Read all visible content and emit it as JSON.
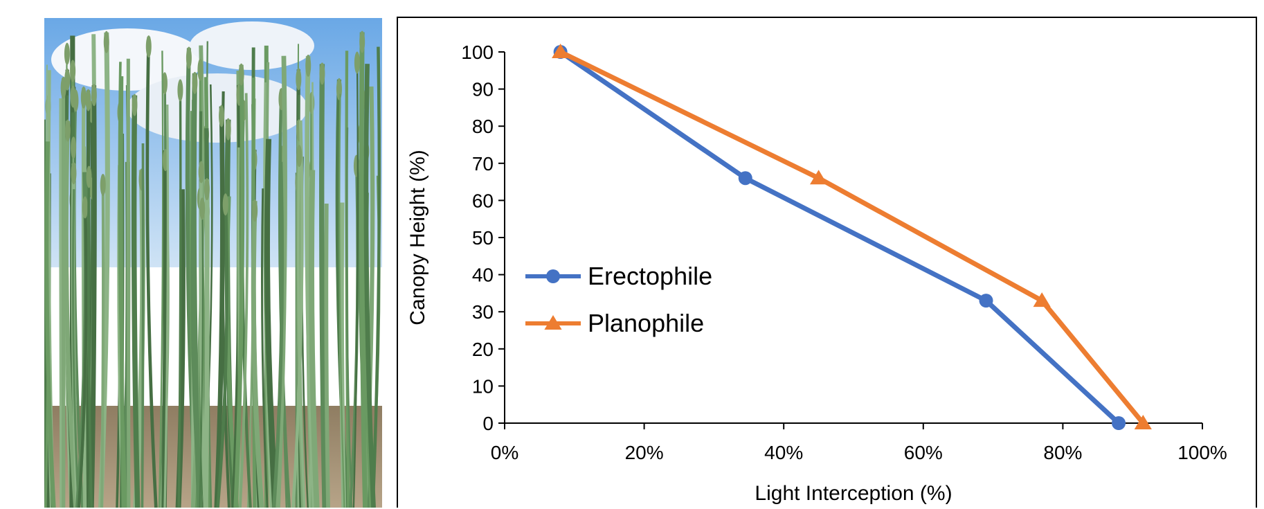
{
  "chart_data": {
    "type": "line",
    "title": "",
    "xlabel": "Light Interception (%)",
    "ylabel": "Canopy Height (%)",
    "xlim": [
      0,
      100
    ],
    "ylim": [
      0,
      100
    ],
    "x_ticks": [
      0,
      20,
      40,
      60,
      80,
      100
    ],
    "x_tick_labels": [
      "0%",
      "20%",
      "40%",
      "60%",
      "80%",
      "100%"
    ],
    "y_ticks": [
      0,
      10,
      20,
      30,
      40,
      50,
      60,
      70,
      80,
      90,
      100
    ],
    "y_tick_labels": [
      "0",
      "10",
      "20",
      "30",
      "40",
      "50",
      "60",
      "70",
      "80",
      "90",
      "100"
    ],
    "grid": false,
    "legend_position": "center-left",
    "series": [
      {
        "name": "Erectophile",
        "color": "#4472C4",
        "marker": "circle",
        "points": [
          {
            "x": 8,
            "y": 100
          },
          {
            "x": 34.5,
            "y": 66
          },
          {
            "x": 69,
            "y": 33
          },
          {
            "x": 88,
            "y": 0
          }
        ]
      },
      {
        "name": "Planophile",
        "color": "#ED7D31",
        "marker": "triangle",
        "points": [
          {
            "x": 8,
            "y": 100
          },
          {
            "x": 45,
            "y": 66
          },
          {
            "x": 77,
            "y": 33
          },
          {
            "x": 91.5,
            "y": 0
          }
        ]
      }
    ]
  },
  "photo": {
    "sky_color": "#7fb6e8",
    "foliage_color": "#5f8a55",
    "soil_color": "#a89378"
  }
}
